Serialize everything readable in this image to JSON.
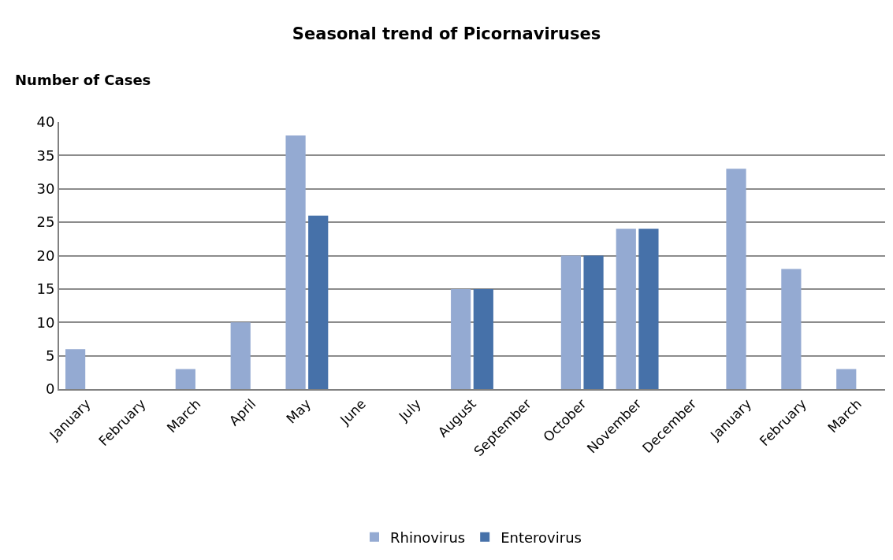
{
  "chart_data": {
    "type": "bar",
    "title": "Seasonal trend of Picornaviruses",
    "ylabel": "Number of Cases",
    "categories": [
      "January",
      "February",
      "March",
      "April",
      "May",
      "June",
      "July",
      "August",
      "September",
      "October",
      "November",
      "December",
      "January",
      "February",
      "March"
    ],
    "series": [
      {
        "name": "Rhinovirus",
        "color": "#94aad2",
        "values": [
          6,
          0,
          3,
          10,
          38,
          0,
          0,
          15,
          0,
          20,
          24,
          0,
          33,
          18,
          3
        ]
      },
      {
        "name": "Enterovirus",
        "color": "#4671a9",
        "values": [
          0,
          0,
          0,
          0,
          26,
          0,
          0,
          15,
          0,
          20,
          24,
          0,
          0,
          0,
          0
        ]
      }
    ],
    "ylim": [
      0,
      40
    ],
    "yticks": [
      0,
      5,
      10,
      15,
      20,
      25,
      30,
      35,
      40
    ],
    "grid": "y",
    "legend": "bottom"
  }
}
